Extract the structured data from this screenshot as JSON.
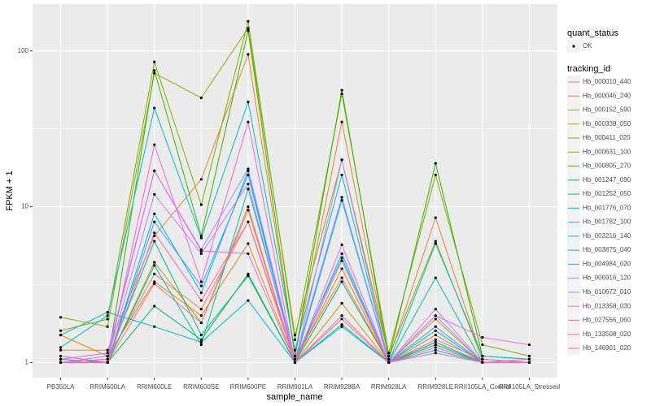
{
  "chart_data": {
    "type": "line",
    "x_label": "sample_name",
    "y_label": "FPKM + 1",
    "log_y": true,
    "grid": true,
    "ylim": [
      0.8,
      200
    ],
    "yticks": [
      1,
      10,
      100
    ],
    "shape_legend": {
      "title": "quant_status",
      "labels": [
        "OK"
      ]
    },
    "legend_title": "tracking_id",
    "legend_position": "right",
    "point_color": "#000000",
    "categories": [
      "PB350LA",
      "RRIM600LA",
      "RRIM600LE",
      "RRIM600SE",
      "RRIM600PE",
      "RRIM901LA",
      "RRIM928BA",
      "RRIM928LA",
      "RRIM928LE",
      "RRII105LA_Control",
      "RRII105LA_Stressed"
    ],
    "series": [
      {
        "name": "Hb_000010_440",
        "color": "#F8766D",
        "values": [
          1.0,
          1.05,
          3.7,
          2.2,
          8,
          1.05,
          3.5,
          1.0,
          1.3,
          1.0,
          1.0
        ]
      },
      {
        "name": "Hb_000046_240",
        "color": "#EA8331",
        "values": [
          1.2,
          1.2,
          6.5,
          15,
          95,
          1.1,
          35,
          1.05,
          8.5,
          1.05,
          1.0
        ]
      },
      {
        "name": "Hb_000152_590",
        "color": "#D89000",
        "values": [
          1.5,
          1.1,
          3.3,
          2.0,
          5.8,
          1.0,
          4.0,
          1.0,
          1.9,
          1.0,
          1.0
        ]
      },
      {
        "name": "Hb_000339_050",
        "color": "#C09B00",
        "values": [
          1.05,
          1.0,
          4.4,
          1.8,
          9.5,
          1.0,
          2.4,
          1.0,
          1.5,
          1.0,
          1.0
        ]
      },
      {
        "name": "Hb_000411_020",
        "color": "#A3A500",
        "values": [
          1.95,
          1.7,
          72,
          50,
          140,
          1.5,
          20,
          1.1,
          6.0,
          1.05,
          1.0
        ]
      },
      {
        "name": "Hb_000631_100",
        "color": "#7CAE00",
        "values": [
          1.6,
          1.9,
          85,
          10.3,
          155,
          1.4,
          53,
          1.15,
          16,
          1.3,
          1.1
        ]
      },
      {
        "name": "Hb_000805_270",
        "color": "#39B600",
        "values": [
          1.0,
          1.0,
          75,
          6.5,
          135,
          1.1,
          56,
          1.05,
          19,
          1.1,
          1.05
        ]
      },
      {
        "name": "Hb_001247_090",
        "color": "#00BB4E",
        "values": [
          1.0,
          1.0,
          2.3,
          1.4,
          3.7,
          1.0,
          3.3,
          1.0,
          1.35,
          1.0,
          1.0
        ]
      },
      {
        "name": "Hb_001252_050",
        "color": "#00BF7D",
        "values": [
          1.0,
          1.05,
          6.0,
          1.5,
          3.6,
          1.0,
          1.75,
          1.0,
          1.3,
          1.0,
          1.0
        ]
      },
      {
        "name": "Hb_001776_070",
        "color": "#00C1A3",
        "values": [
          1.05,
          1.0,
          4.2,
          1.3,
          13,
          1.05,
          4.7,
          1.0,
          3.5,
          1.0,
          1.0
        ]
      },
      {
        "name": "Hb_001782_100",
        "color": "#00BFC4",
        "values": [
          1.25,
          2.0,
          43,
          6.3,
          47,
          1.2,
          16,
          1.0,
          5.8,
          1.1,
          1.05
        ]
      },
      {
        "name": "Hb_003216_140",
        "color": "#00BAE0",
        "values": [
          1.5,
          2.1,
          1.7,
          1.35,
          2.5,
          1.0,
          1.7,
          1.0,
          1.2,
          1.0,
          1.0
        ]
      },
      {
        "name": "Hb_003875_040",
        "color": "#00B0F6",
        "values": [
          1.0,
          1.0,
          9,
          2.8,
          17,
          1.0,
          11,
          1.0,
          1.6,
          1.0,
          1.0
        ]
      },
      {
        "name": "Hb_004984_020",
        "color": "#35A2FF",
        "values": [
          1.0,
          1.0,
          8,
          3.1,
          16,
          1.0,
          5,
          1.0,
          1.7,
          1.0,
          1.0
        ]
      },
      {
        "name": "Hb_006916_120",
        "color": "#9590FF",
        "values": [
          1.0,
          1.1,
          17,
          5.3,
          17.5,
          1.05,
          11.5,
          1.0,
          2.0,
          1.0,
          1.0
        ]
      },
      {
        "name": "Hb_010672_010",
        "color": "#C77CFF",
        "values": [
          1.0,
          1.05,
          12,
          5.0,
          14,
          1.0,
          20,
          1.0,
          2.2,
          1.0,
          1.0
        ]
      },
      {
        "name": "Hb_013358_030",
        "color": "#E76BF3",
        "values": [
          1.05,
          1.15,
          17,
          5.2,
          5.0,
          1.0,
          5.7,
          1.0,
          2.0,
          1.45,
          1.3
        ]
      },
      {
        "name": "Hb_027556_060",
        "color": "#FA62DB",
        "values": [
          1.0,
          1.0,
          25,
          3.3,
          35,
          1.0,
          4.5,
          1.0,
          1.4,
          1.05,
          1.0
        ]
      },
      {
        "name": "Hb_133508_020",
        "color": "#FF62BC",
        "values": [
          1.1,
          1.0,
          6.8,
          2.5,
          8,
          1.0,
          2.0,
          1.0,
          1.25,
          1.0,
          1.05
        ]
      },
      {
        "name": "Hb_146901_020",
        "color": "#FF6C91",
        "values": [
          1.0,
          1.0,
          3.2,
          1.8,
          10,
          1.0,
          1.9,
          1.0,
          1.15,
          1.0,
          1.0
        ]
      }
    ]
  }
}
